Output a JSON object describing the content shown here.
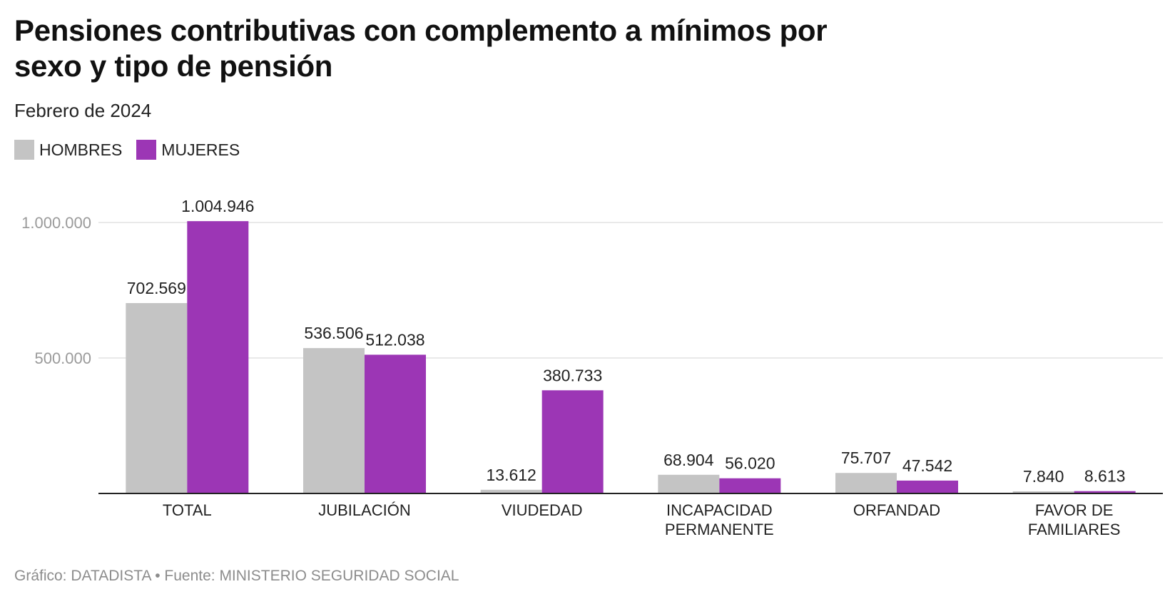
{
  "header": {
    "title": "Pensiones contributivas con complemento a mínimos por sexo y tipo de pensión",
    "subtitle": "Febrero de 2024"
  },
  "footer": {
    "text": "Gráfico: DATADISTA • Fuente: MINISTERIO SEGURIDAD SOCIAL"
  },
  "chart_data": {
    "type": "bar",
    "title": "Pensiones contributivas con complemento a mínimos por sexo y tipo de pensión",
    "subtitle": "Febrero de 2024",
    "categories": [
      [
        "TOTAL"
      ],
      [
        "JUBILACIÓN"
      ],
      [
        "VIUDEDAD"
      ],
      [
        "INCAPACIDAD",
        "PERMANENTE"
      ],
      [
        "ORFANDAD"
      ],
      [
        "FAVOR DE",
        "FAMILIARES"
      ]
    ],
    "series": [
      {
        "name": "HOMBRES",
        "color": "#c4c4c4",
        "values": [
          702569,
          536506,
          13612,
          68904,
          75707,
          7840
        ],
        "labels": [
          "702.569",
          "536.506",
          "13.612",
          "68.904",
          "75.707",
          "7.840"
        ]
      },
      {
        "name": "MUJERES",
        "color": "#9c36b5",
        "values": [
          1004946,
          512038,
          380733,
          56020,
          47542,
          8613
        ],
        "labels": [
          "1.004.946",
          "512.038",
          "380.733",
          "56.020",
          "47.542",
          "8.613"
        ]
      }
    ],
    "yticks": [
      500000,
      1000000
    ],
    "ytick_labels": [
      "500.000",
      "1.000.000"
    ],
    "ylim": [
      0,
      1000000
    ],
    "xlabel": "",
    "ylabel": "",
    "grid": true,
    "legend_position": "top-left"
  }
}
